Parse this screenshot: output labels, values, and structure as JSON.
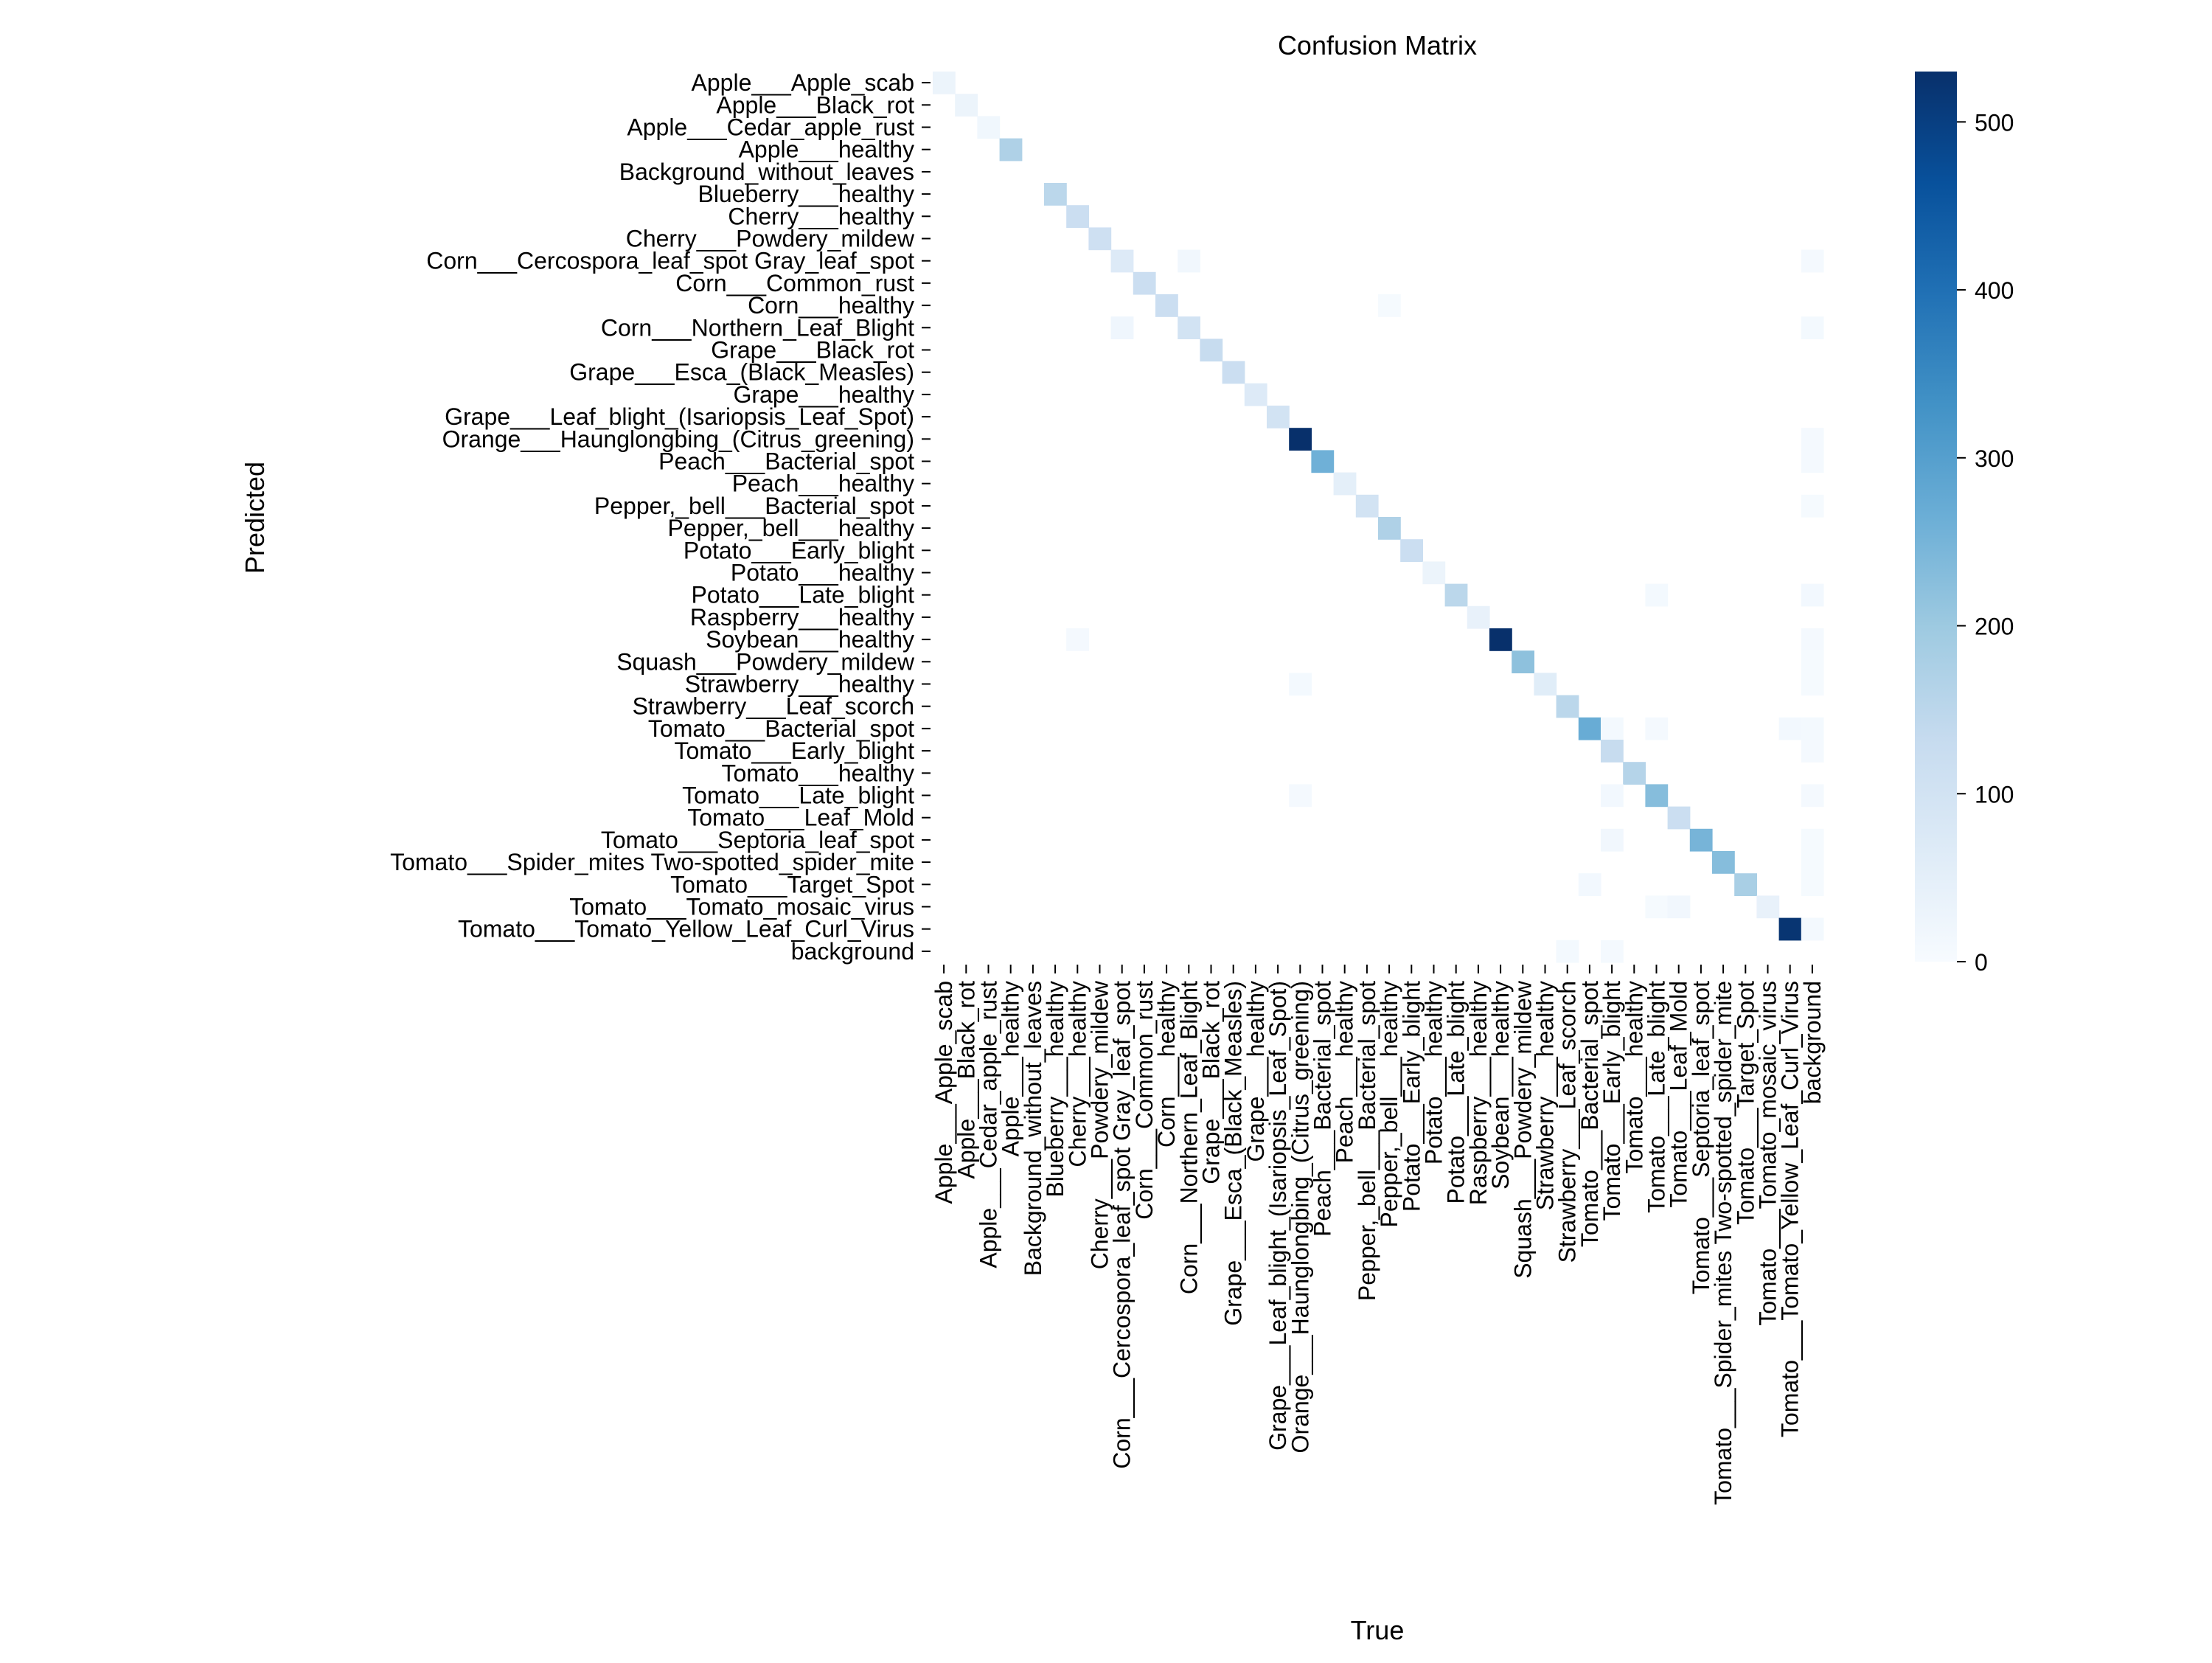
{
  "chart_data": {
    "type": "heatmap",
    "title": "Confusion Matrix",
    "xlabel": "True",
    "ylabel": "Predicted",
    "colormap": "Blues",
    "colormap_colors": [
      "#f7fbff",
      "#deebf7",
      "#c6dbef",
      "#9ecae1",
      "#6baed6",
      "#4292c6",
      "#2171b5",
      "#08519c",
      "#08306b"
    ],
    "grid": false,
    "colorbar": {
      "range": [
        0,
        530
      ],
      "ticks": [
        0,
        100,
        200,
        300,
        400,
        500
      ],
      "tick_labels": [
        "0",
        "100",
        "200",
        "300",
        "400",
        "500"
      ],
      "position": "right"
    },
    "labels": [
      "Apple___Apple_scab",
      "Apple___Black_rot",
      "Apple___Cedar_apple_rust",
      "Apple___healthy",
      "Background_without_leaves",
      "Blueberry___healthy",
      "Cherry___healthy",
      "Cherry___Powdery_mildew",
      "Corn___Cercospora_leaf_spot Gray_leaf_spot",
      "Corn___Common_rust",
      "Corn___healthy",
      "Corn___Northern_Leaf_Blight",
      "Grape___Black_rot",
      "Grape___Esca_(Black_Measles)",
      "Grape___healthy",
      "Grape___Leaf_blight_(Isariopsis_Leaf_Spot)",
      "Orange___Haunglongbing_(Citrus_greening)",
      "Peach___Bacterial_spot",
      "Peach___healthy",
      "Pepper,_bell___Bacterial_spot",
      "Pepper,_bell___healthy",
      "Potato___Early_blight",
      "Potato___healthy",
      "Potato___Late_blight",
      "Raspberry___healthy",
      "Soybean___healthy",
      "Squash___Powdery_mildew",
      "Strawberry___healthy",
      "Strawberry___Leaf_scorch",
      "Tomato___Bacterial_spot",
      "Tomato___Early_blight",
      "Tomato___healthy",
      "Tomato___Late_blight",
      "Tomato___Leaf_Mold",
      "Tomato___Septoria_leaf_spot",
      "Tomato___Spider_mites Two-spotted_spider_mite",
      "Tomato___Target_Spot",
      "Tomato___Tomato_mosaic_virus",
      "Tomato___Tomato_Yellow_Leaf_Curl_Virus",
      "background"
    ],
    "diagonal": [
      30,
      30,
      18,
      170,
      0,
      150,
      120,
      110,
      70,
      120,
      120,
      100,
      130,
      120,
      70,
      100,
      530,
      260,
      50,
      100,
      170,
      120,
      30,
      150,
      40,
      530,
      220,
      60,
      150,
      270,
      130,
      160,
      230,
      120,
      250,
      230,
      180,
      40,
      520,
      0
    ],
    "off_diagonal": [
      [
        8,
        11,
        15
      ],
      [
        8,
        39,
        8
      ],
      [
        10,
        20,
        5
      ],
      [
        11,
        8,
        20
      ],
      [
        11,
        39,
        10
      ],
      [
        16,
        39,
        8
      ],
      [
        17,
        39,
        8
      ],
      [
        19,
        39,
        6
      ],
      [
        23,
        32,
        10
      ],
      [
        23,
        39,
        12
      ],
      [
        25,
        6,
        8
      ],
      [
        25,
        39,
        8
      ],
      [
        26,
        39,
        6
      ],
      [
        27,
        16,
        10
      ],
      [
        27,
        39,
        6
      ],
      [
        29,
        30,
        10
      ],
      [
        29,
        32,
        8
      ],
      [
        29,
        38,
        12
      ],
      [
        29,
        39,
        10
      ],
      [
        30,
        39,
        8
      ],
      [
        32,
        16,
        8
      ],
      [
        32,
        30,
        12
      ],
      [
        32,
        39,
        8
      ],
      [
        34,
        30,
        15
      ],
      [
        34,
        39,
        6
      ],
      [
        35,
        39,
        6
      ],
      [
        36,
        29,
        12
      ],
      [
        36,
        39,
        6
      ],
      [
        37,
        33,
        15
      ],
      [
        37,
        32,
        5
      ],
      [
        38,
        39,
        10
      ],
      [
        39,
        28,
        10
      ],
      [
        39,
        30,
        8
      ]
    ]
  }
}
